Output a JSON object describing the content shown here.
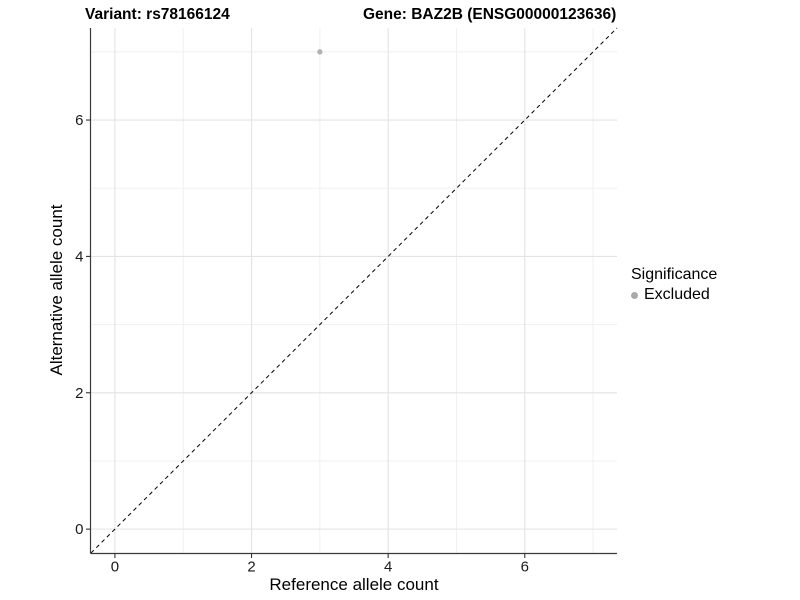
{
  "titles": {
    "variant": "Variant: rs78166124",
    "gene": "Gene: BAZ2B (ENSG00000123636)"
  },
  "legend": {
    "title": "Significance",
    "items": [
      {
        "label": "Excluded",
        "color": "#a9a9a9"
      }
    ]
  },
  "colors": {
    "point": "#b3b3b3",
    "axis_line": "#3a3a3a",
    "tick_mark": "#333333",
    "tick_label": "#1a1a1a",
    "grid_major": "#e3e3e3",
    "grid_minor": "#efefef",
    "diagonal": "#000000",
    "background": "#ffffff"
  },
  "chart_data": {
    "type": "scatter",
    "title": "Variant: rs78166124   Gene: BAZ2B (ENSG00000123636)",
    "xlabel": "Reference allele count",
    "ylabel": "Alternative allele count",
    "xlim": [
      -0.35,
      7.35
    ],
    "ylim": [
      -0.35,
      7.35
    ],
    "x_ticks": [
      0,
      2,
      4,
      6
    ],
    "y_ticks": [
      0,
      2,
      4,
      6
    ],
    "x_minor": [
      1,
      3,
      5,
      7
    ],
    "y_minor": [
      1,
      3,
      5,
      7
    ],
    "grid": true,
    "legend_position": "right",
    "series": [
      {
        "name": "Excluded",
        "color": "#b3b3b3",
        "points": [
          {
            "x": 3,
            "y": 7
          }
        ]
      }
    ],
    "reference_line": {
      "style": "dashed",
      "from": [
        -0.35,
        -0.35
      ],
      "to": [
        7.35,
        7.35
      ]
    }
  }
}
